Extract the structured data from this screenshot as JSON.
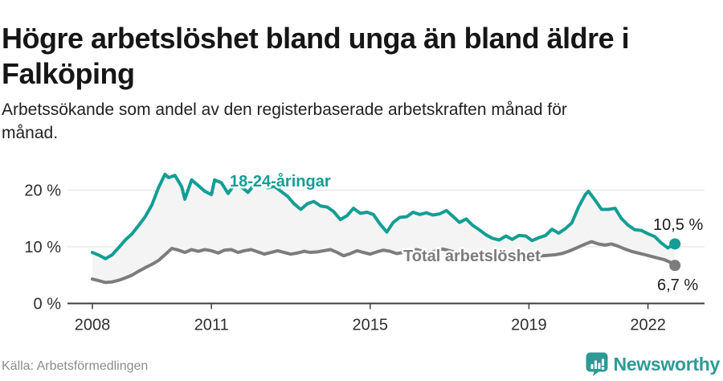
{
  "header": {
    "title_line1": "Högre arbetslöshet bland unga än bland äldre i",
    "title_line2": "Falköping",
    "subtitle_line1": "Arbetssökande som andel av den registerbaserade arbetskraften månad för",
    "subtitle_line2": "månad."
  },
  "footer": {
    "source": "Källa: Arbetsförmedlingen",
    "brand": "Newsworthy"
  },
  "colors": {
    "accent_teal": "#129e94",
    "series_gray": "#7c7c7c",
    "grid": "#e1e1e1",
    "axis": "#3d3d3d",
    "area_fill": "#f4f4f4",
    "tick_text": "#2e2e2e",
    "value_text": "#1c1c1c",
    "brand_teal": "#2d9a94"
  },
  "chart_data": {
    "type": "line",
    "title": "Högre arbetslöshet bland unga än bland äldre i Falköping",
    "subtitle": "Arbetssökande som andel av den registerbaserade arbetskraften månad för månad.",
    "unit": "%",
    "grid": "horizontal",
    "legend": "inline-labels",
    "x_axis": {
      "ticks": [
        2008,
        2011,
        2015,
        2019,
        2022
      ],
      "tick_labels": [
        "2008",
        "2011",
        "2015",
        "2019",
        "2022"
      ],
      "range": [
        2008,
        2022.75
      ]
    },
    "y_axis": {
      "ticks": [
        0,
        10,
        20
      ],
      "tick_labels": [
        "0 %",
        "10 %",
        "20 %"
      ],
      "range": [
        0,
        24
      ]
    },
    "series": [
      {
        "id": "youth",
        "name": "18-24-åringar",
        "color": "#129e94",
        "end_value": 10.5,
        "end_label": "10,5 %",
        "points": [
          [
            2008.0,
            9.0
          ],
          [
            2008.17,
            8.5
          ],
          [
            2008.33,
            7.9
          ],
          [
            2008.5,
            8.6
          ],
          [
            2008.67,
            9.9
          ],
          [
            2008.83,
            11.2
          ],
          [
            2009.0,
            12.3
          ],
          [
            2009.17,
            13.8
          ],
          [
            2009.33,
            15.3
          ],
          [
            2009.5,
            17.4
          ],
          [
            2009.67,
            20.5
          ],
          [
            2009.83,
            22.8
          ],
          [
            2009.92,
            22.2
          ],
          [
            2010.08,
            22.6
          ],
          [
            2010.25,
            20.6
          ],
          [
            2010.33,
            18.4
          ],
          [
            2010.5,
            21.8
          ],
          [
            2010.67,
            20.8
          ],
          [
            2010.83,
            19.8
          ],
          [
            2011.0,
            19.2
          ],
          [
            2011.08,
            21.8
          ],
          [
            2011.25,
            21.3
          ],
          [
            2011.42,
            19.4
          ],
          [
            2011.58,
            21.0
          ],
          [
            2011.75,
            20.6
          ],
          [
            2011.92,
            19.6
          ],
          [
            2012.08,
            21.0
          ],
          [
            2012.25,
            22.2
          ],
          [
            2012.42,
            20.4
          ],
          [
            2012.58,
            20.7
          ],
          [
            2012.75,
            19.8
          ],
          [
            2012.92,
            18.9
          ],
          [
            2013.08,
            17.6
          ],
          [
            2013.25,
            16.6
          ],
          [
            2013.42,
            17.6
          ],
          [
            2013.58,
            18.0
          ],
          [
            2013.75,
            17.2
          ],
          [
            2013.92,
            17.0
          ],
          [
            2014.08,
            16.2
          ],
          [
            2014.25,
            14.8
          ],
          [
            2014.42,
            15.5
          ],
          [
            2014.58,
            16.8
          ],
          [
            2014.75,
            15.9
          ],
          [
            2014.92,
            16.1
          ],
          [
            2015.08,
            15.7
          ],
          [
            2015.25,
            14.0
          ],
          [
            2015.42,
            12.6
          ],
          [
            2015.58,
            14.3
          ],
          [
            2015.75,
            15.2
          ],
          [
            2015.92,
            15.3
          ],
          [
            2016.08,
            16.1
          ],
          [
            2016.25,
            15.7
          ],
          [
            2016.42,
            16.0
          ],
          [
            2016.58,
            15.6
          ],
          [
            2016.75,
            15.8
          ],
          [
            2016.92,
            16.4
          ],
          [
            2017.08,
            15.4
          ],
          [
            2017.25,
            14.3
          ],
          [
            2017.42,
            14.9
          ],
          [
            2017.58,
            13.8
          ],
          [
            2017.75,
            13.0
          ],
          [
            2017.92,
            12.1
          ],
          [
            2018.08,
            11.5
          ],
          [
            2018.25,
            11.2
          ],
          [
            2018.42,
            11.9
          ],
          [
            2018.58,
            11.3
          ],
          [
            2018.75,
            12.0
          ],
          [
            2018.92,
            11.9
          ],
          [
            2019.08,
            11.1
          ],
          [
            2019.25,
            11.6
          ],
          [
            2019.42,
            12.0
          ],
          [
            2019.58,
            13.1
          ],
          [
            2019.75,
            12.4
          ],
          [
            2019.92,
            13.2
          ],
          [
            2020.08,
            14.2
          ],
          [
            2020.25,
            17.0
          ],
          [
            2020.42,
            19.2
          ],
          [
            2020.5,
            19.8
          ],
          [
            2020.67,
            18.2
          ],
          [
            2020.83,
            16.6
          ],
          [
            2021.0,
            16.6
          ],
          [
            2021.17,
            16.8
          ],
          [
            2021.33,
            15.0
          ],
          [
            2021.5,
            13.8
          ],
          [
            2021.67,
            13.0
          ],
          [
            2021.83,
            12.9
          ],
          [
            2022.0,
            12.3
          ],
          [
            2022.17,
            11.8
          ],
          [
            2022.33,
            10.7
          ],
          [
            2022.5,
            9.8
          ],
          [
            2022.68,
            10.5
          ]
        ]
      },
      {
        "id": "total",
        "name": "Total arbetslöshet",
        "color": "#7c7c7c",
        "end_value": 6.7,
        "end_label": "6,7 %",
        "points": [
          [
            2008.0,
            4.3
          ],
          [
            2008.17,
            4.0
          ],
          [
            2008.33,
            3.7
          ],
          [
            2008.5,
            3.8
          ],
          [
            2008.67,
            4.1
          ],
          [
            2008.83,
            4.5
          ],
          [
            2009.0,
            5.0
          ],
          [
            2009.17,
            5.7
          ],
          [
            2009.33,
            6.3
          ],
          [
            2009.5,
            6.9
          ],
          [
            2009.67,
            7.6
          ],
          [
            2009.83,
            8.6
          ],
          [
            2010.0,
            9.7
          ],
          [
            2010.17,
            9.4
          ],
          [
            2010.33,
            9.0
          ],
          [
            2010.5,
            9.5
          ],
          [
            2010.67,
            9.2
          ],
          [
            2010.83,
            9.5
          ],
          [
            2011.0,
            9.3
          ],
          [
            2011.17,
            8.9
          ],
          [
            2011.33,
            9.4
          ],
          [
            2011.5,
            9.5
          ],
          [
            2011.67,
            9.0
          ],
          [
            2011.83,
            9.3
          ],
          [
            2012.0,
            9.5
          ],
          [
            2012.17,
            9.1
          ],
          [
            2012.33,
            8.7
          ],
          [
            2012.5,
            9.0
          ],
          [
            2012.67,
            9.3
          ],
          [
            2012.83,
            9.0
          ],
          [
            2013.0,
            8.7
          ],
          [
            2013.17,
            8.9
          ],
          [
            2013.33,
            9.2
          ],
          [
            2013.5,
            9.0
          ],
          [
            2013.67,
            9.1
          ],
          [
            2013.83,
            9.3
          ],
          [
            2014.0,
            9.5
          ],
          [
            2014.17,
            9.0
          ],
          [
            2014.33,
            8.4
          ],
          [
            2014.5,
            8.8
          ],
          [
            2014.67,
            9.3
          ],
          [
            2014.83,
            9.0
          ],
          [
            2015.0,
            8.7
          ],
          [
            2015.17,
            9.1
          ],
          [
            2015.33,
            9.4
          ],
          [
            2015.5,
            9.2
          ],
          [
            2015.67,
            8.8
          ],
          [
            2015.83,
            9.0
          ],
          [
            2016.0,
            9.3
          ],
          [
            2016.17,
            9.5
          ],
          [
            2016.33,
            9.2
          ],
          [
            2016.5,
            9.0
          ],
          [
            2016.67,
            9.3
          ],
          [
            2016.83,
            9.6
          ],
          [
            2017.0,
            9.3
          ],
          [
            2017.17,
            9.0
          ],
          [
            2017.33,
            8.8
          ],
          [
            2017.5,
            8.6
          ],
          [
            2017.67,
            8.4
          ],
          [
            2017.83,
            8.2
          ],
          [
            2018.0,
            8.0
          ],
          [
            2018.17,
            8.2
          ],
          [
            2018.33,
            8.1
          ],
          [
            2018.5,
            7.9
          ],
          [
            2018.67,
            8.1
          ],
          [
            2018.83,
            8.3
          ],
          [
            2019.0,
            8.1
          ],
          [
            2019.17,
            8.3
          ],
          [
            2019.33,
            8.4
          ],
          [
            2019.5,
            8.5
          ],
          [
            2019.67,
            8.6
          ],
          [
            2019.83,
            8.8
          ],
          [
            2020.0,
            9.2
          ],
          [
            2020.17,
            9.7
          ],
          [
            2020.33,
            10.2
          ],
          [
            2020.5,
            10.7
          ],
          [
            2020.58,
            10.9
          ],
          [
            2020.75,
            10.5
          ],
          [
            2020.92,
            10.3
          ],
          [
            2021.08,
            10.5
          ],
          [
            2021.25,
            10.1
          ],
          [
            2021.42,
            9.6
          ],
          [
            2021.58,
            9.2
          ],
          [
            2021.75,
            8.9
          ],
          [
            2021.92,
            8.6
          ],
          [
            2022.08,
            8.3
          ],
          [
            2022.25,
            8.0
          ],
          [
            2022.42,
            7.7
          ],
          [
            2022.58,
            7.2
          ],
          [
            2022.68,
            6.7
          ]
        ]
      }
    ]
  }
}
